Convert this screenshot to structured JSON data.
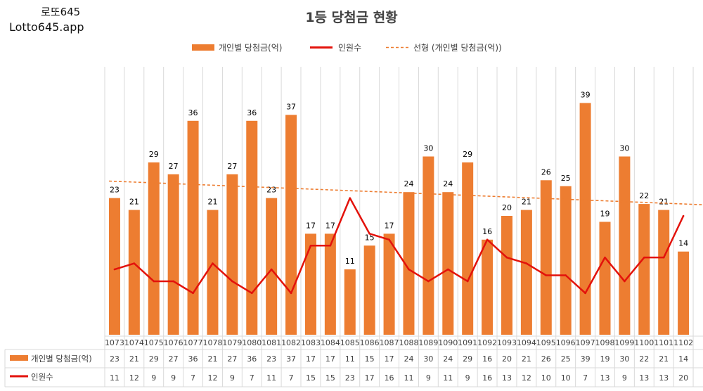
{
  "brand": {
    "korean": "로또645",
    "url": "Lotto645.app"
  },
  "chart_data": {
    "type": "bar",
    "title": "1등 당첨금 현황",
    "categories": [
      "1073",
      "1074",
      "1075",
      "1076",
      "1077",
      "1078",
      "1079",
      "1080",
      "1081",
      "1082",
      "1083",
      "1084",
      "1085",
      "1086",
      "1087",
      "1088",
      "1089",
      "1090",
      "1091",
      "1092",
      "1093",
      "1094",
      "1095",
      "1096",
      "1097",
      "1098",
      "1099",
      "1100",
      "1101",
      "1102"
    ],
    "series": [
      {
        "name": "개인별 당첨금(억)",
        "kind": "bar",
        "color": "#ED7D31",
        "values": [
          23,
          21,
          29,
          27,
          36,
          21,
          27,
          36,
          23,
          37,
          17,
          17,
          11,
          15,
          17,
          24,
          30,
          24,
          29,
          16,
          20,
          21,
          26,
          25,
          39,
          19,
          30,
          22,
          21,
          14
        ]
      },
      {
        "name": "인원수",
        "kind": "line",
        "color": "#E3120B",
        "values": [
          11,
          12,
          9,
          9,
          7,
          12,
          9,
          7,
          11,
          7,
          15,
          15,
          23,
          17,
          16,
          11,
          9,
          11,
          9,
          16,
          13,
          12,
          10,
          10,
          7,
          13,
          9,
          13,
          13,
          20
        ]
      }
    ],
    "trendline": {
      "name": "선형 (개인별 당첨금(억))",
      "of": "개인별 당첨금(억)",
      "style": "dashed",
      "color": "#ED7D31"
    },
    "ylim": [
      0,
      45
    ],
    "xlabel": "",
    "ylabel": "",
    "grid": "vertical",
    "legend": "top",
    "data_table": true
  }
}
